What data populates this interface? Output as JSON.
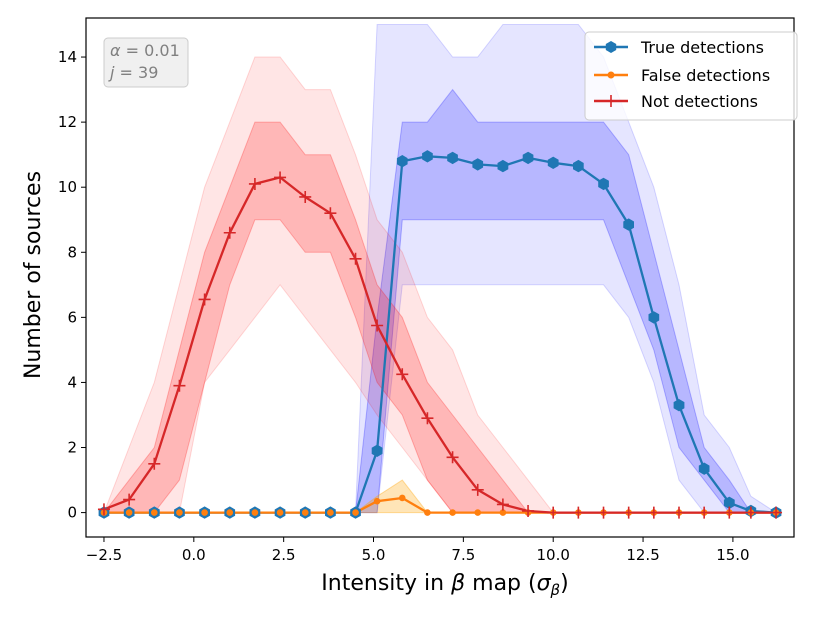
{
  "chart_data": {
    "type": "line",
    "xlabel": "Intensity in β map (σβ)",
    "xlabel_parts": {
      "pre": "Intensity in ",
      "beta": "β",
      "mid": " map (",
      "sigma": "σ",
      "sub": "β",
      "post": ")"
    },
    "ylabel": "Number of sources",
    "xlim": [
      -3.0,
      16.7
    ],
    "ylim": [
      -0.75,
      15.2
    ],
    "xticks": [
      -2.5,
      0.0,
      2.5,
      5.0,
      7.5,
      10.0,
      12.5,
      15.0
    ],
    "xtick_labels": [
      "−2.5",
      "0.0",
      "2.5",
      "5.0",
      "7.5",
      "10.0",
      "12.5",
      "15.0"
    ],
    "yticks": [
      0,
      2,
      4,
      6,
      8,
      10,
      12,
      14
    ],
    "ytick_labels": [
      "0",
      "2",
      "4",
      "6",
      "8",
      "10",
      "12",
      "14"
    ],
    "annotation": {
      "line1": {
        "sym": "α",
        "rest": " = 0.01"
      },
      "line2": {
        "sym": "j",
        "rest": " = 39"
      }
    },
    "legend_position": "top-right",
    "x": [
      -2.5,
      -1.8,
      -1.1,
      -0.4,
      0.3,
      1.0,
      1.7,
      2.4,
      3.1,
      3.8,
      4.5,
      5.1,
      5.8,
      6.5,
      7.2,
      7.9,
      8.6,
      9.3,
      10.0,
      10.7,
      11.4,
      12.1,
      12.8,
      13.5,
      14.2,
      14.9,
      15.5,
      16.2
    ],
    "series": [
      {
        "name": "True detections",
        "color": "#1f77b4",
        "marker": "hexagon",
        "values": [
          0,
          0,
          0,
          0,
          0,
          0,
          0,
          0,
          0,
          0,
          0,
          1.9,
          10.8,
          10.95,
          10.9,
          10.7,
          10.65,
          10.9,
          10.75,
          10.65,
          10.1,
          8.85,
          6.0,
          3.3,
          1.35,
          0.3,
          0.05,
          0.0
        ],
        "band_color": "#0000ff",
        "band_inner_low": [
          0,
          0,
          0,
          0,
          0,
          0,
          0,
          0,
          0,
          0,
          0,
          0,
          9,
          9,
          9,
          9,
          9,
          9,
          9,
          9,
          9,
          7,
          5,
          2,
          1,
          0,
          0,
          0
        ],
        "band_inner_high": [
          0,
          0,
          0,
          0,
          0,
          0,
          0,
          0,
          0,
          0,
          0,
          6,
          12,
          12,
          13,
          12,
          12,
          12,
          12,
          12,
          12,
          11,
          8,
          5,
          2,
          1,
          0,
          0
        ],
        "band_outer_low": [
          0,
          0,
          0,
          0,
          0,
          0,
          0,
          0,
          0,
          0,
          0,
          0,
          7,
          7,
          7,
          7,
          7,
          7,
          7,
          7,
          7,
          6,
          4,
          1,
          0,
          0,
          0,
          0
        ],
        "band_outer_high": [
          0,
          0,
          0,
          0,
          0,
          0,
          0,
          0,
          0,
          0,
          0,
          15,
          15,
          15,
          14,
          14,
          15,
          15,
          15,
          15,
          14,
          12,
          10,
          7,
          3,
          2,
          0.5,
          0
        ]
      },
      {
        "name": "False detections",
        "color": "#ff7f0e",
        "marker": "dot",
        "values": [
          0,
          0,
          0,
          0,
          0,
          0,
          0,
          0,
          0,
          0,
          0,
          0.35,
          0.45,
          0,
          0,
          0,
          0,
          0,
          0,
          0,
          0,
          0,
          0,
          0,
          0,
          0,
          0,
          0
        ],
        "band_color": "#ffa500",
        "band_inner_low": [
          0,
          0,
          0,
          0,
          0,
          0,
          0,
          0,
          0,
          0,
          0,
          0,
          0,
          0,
          0,
          0,
          0,
          0,
          0,
          0,
          0,
          0,
          0,
          0,
          0,
          0,
          0,
          0
        ],
        "band_inner_high": [
          0,
          0,
          0,
          0,
          0,
          0,
          0,
          0,
          0,
          0,
          0,
          0.5,
          1,
          0,
          0,
          0,
          0,
          0,
          0,
          0,
          0,
          0,
          0,
          0,
          0,
          0,
          0,
          0
        ],
        "band_outer_low": [
          0,
          0,
          0,
          0,
          0,
          0,
          0,
          0,
          0,
          0,
          0,
          0,
          0,
          0,
          0,
          0,
          0,
          0,
          0,
          0,
          0,
          0,
          0,
          0,
          0,
          0,
          0,
          0
        ],
        "band_outer_high": [
          0,
          0,
          0,
          0,
          0,
          0,
          0,
          0,
          0,
          0,
          0,
          0.5,
          1,
          0,
          0,
          0,
          0,
          0,
          0,
          0,
          0,
          0,
          0,
          0,
          0,
          0,
          0,
          0
        ]
      },
      {
        "name": "Not detections",
        "color": "#d62728",
        "marker": "plus",
        "values": [
          0.1,
          0.4,
          1.5,
          3.9,
          6.55,
          8.6,
          10.1,
          10.3,
          9.7,
          9.2,
          7.8,
          5.75,
          4.25,
          2.9,
          1.7,
          0.7,
          0.25,
          0.05,
          0.0,
          0,
          0,
          0,
          0,
          0,
          0,
          0,
          0,
          0
        ],
        "band_color": "#ff0000",
        "band_inner_low": [
          0,
          0,
          0,
          1,
          4,
          7,
          9,
          9,
          8,
          8,
          6,
          4,
          3,
          1,
          0,
          0,
          0,
          0,
          0,
          0,
          0,
          0,
          0,
          0,
          0,
          0,
          0,
          0
        ],
        "band_inner_high": [
          0,
          1,
          2,
          5,
          8,
          10,
          12,
          12,
          11,
          11,
          9,
          7,
          6,
          4,
          3,
          2,
          1,
          0,
          0,
          0,
          0,
          0,
          0,
          0,
          0,
          0,
          0,
          0
        ],
        "band_outer_low": [
          0,
          0,
          0,
          0,
          4,
          5,
          6,
          7,
          6,
          5,
          4,
          3,
          2,
          1,
          0,
          0,
          0,
          0,
          0,
          0,
          0,
          0,
          0,
          0,
          0,
          0,
          0,
          0
        ],
        "band_outer_high": [
          0,
          2,
          4,
          7,
          10,
          12,
          14,
          14,
          13,
          13,
          11,
          9,
          8,
          6,
          5,
          3,
          2,
          1,
          0,
          0,
          0,
          0,
          0,
          0,
          0,
          0,
          0,
          0
        ]
      }
    ]
  }
}
